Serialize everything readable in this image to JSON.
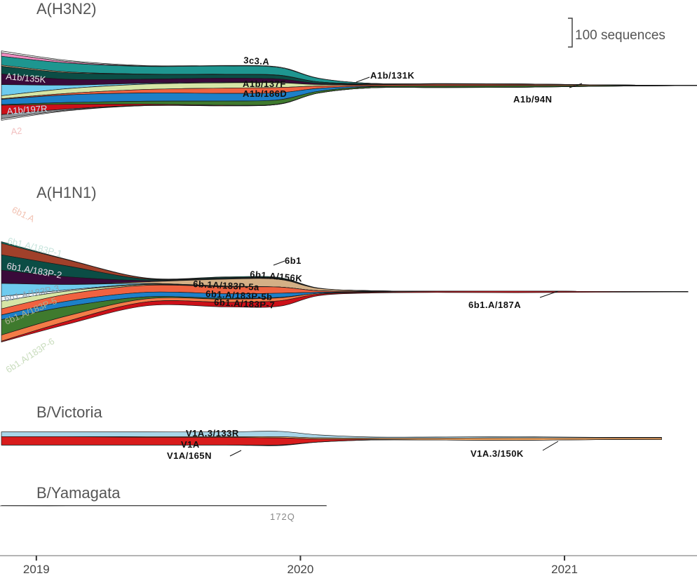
{
  "chart_data": {
    "type": "area",
    "title": "",
    "xlabel": "",
    "ylabel": "",
    "x_axis": {
      "range": [
        2018.95,
        2021.6
      ],
      "ticks": [
        2019,
        2020,
        2021
      ],
      "tick_labels": [
        "2019",
        "2020",
        "2021"
      ]
    },
    "scale_bar": {
      "value": 100,
      "label": "100 sequences"
    },
    "time_points": [
      2018.95,
      2019.2,
      2019.5,
      2019.8,
      2020.0,
      2020.15,
      2020.35,
      2020.6,
      2020.9,
      2021.2,
      2021.5
    ],
    "panels": [
      {
        "name": "A(H3N2)",
        "series": [
          {
            "name": "other-white",
            "color": "#ffffff",
            "values": [
              6,
              4,
              2,
              2,
              2,
              1,
              0,
              0,
              0,
              0,
              0
            ]
          },
          {
            "name": "pink",
            "color": "#f08cc0",
            "values": [
              12,
              5,
              1,
              0,
              0,
              0,
              0,
              0,
              0,
              0,
              0
            ]
          },
          {
            "name": "3c3.A",
            "color": "#1e9690",
            "values": [
              30,
              30,
              26,
              28,
              26,
              12,
              2,
              1,
              1,
              0,
              0
            ]
          },
          {
            "name": "tan",
            "color": "#d8b486",
            "values": [
              4,
              3,
              1,
              1,
              1,
              0,
              0,
              0,
              0,
              0,
              0
            ]
          },
          {
            "name": "A1b/131K",
            "color": "#0b4d45",
            "values": [
              26,
              22,
              16,
              12,
              12,
              5,
              1,
              1,
              1,
              0,
              0
            ]
          },
          {
            "name": "A1b/135K",
            "color": "#3a0a3a",
            "values": [
              36,
              20,
              14,
              14,
              12,
              4,
              1,
              0,
              0,
              0,
              0
            ]
          },
          {
            "name": "lightblue",
            "color": "#6ecbef",
            "values": [
              38,
              12,
              3,
              2,
              1,
              0,
              0,
              0,
              0,
              0,
              0
            ]
          },
          {
            "name": "A1b/137F",
            "color": "#d6e6a6",
            "values": [
              10,
              16,
              18,
              18,
              16,
              5,
              1,
              0,
              0,
              0,
              0
            ]
          },
          {
            "name": "A1b/186D",
            "color": "#f06240",
            "values": [
              2,
              5,
              12,
              18,
              18,
              8,
              4,
              5,
              4,
              2,
              0
            ]
          },
          {
            "name": "A1b/197R",
            "color": "#1d80c8",
            "values": [
              18,
              26,
              28,
              26,
              24,
              10,
              2,
              1,
              1,
              0,
              0
            ]
          },
          {
            "name": "A1b/94N",
            "color": "#3f7a2e",
            "values": [
              2,
              6,
              10,
              14,
              14,
              6,
              4,
              5,
              5,
              3,
              1
            ]
          },
          {
            "name": "A2",
            "color": "#cc1018",
            "values": [
              32,
              16,
              4,
              2,
              1,
              0,
              0,
              0,
              0,
              0,
              0
            ]
          },
          {
            "name": "grey",
            "color": "#8f9296",
            "values": [
              14,
              4,
              1,
              0,
              0,
              0,
              0,
              0,
              0,
              0,
              0
            ]
          },
          {
            "name": "other-white-2",
            "color": "#ffffff",
            "values": [
              5,
              2,
              0,
              0,
              0,
              0,
              0,
              0,
              0,
              0,
              0
            ]
          }
        ],
        "labels_inside": [
          {
            "text": "A1b/135K",
            "color": "#e8e8e8"
          },
          {
            "text": "A1b/197R",
            "color": "#c8e6f6"
          },
          {
            "text": "A2",
            "color": "#f2c0c0"
          }
        ],
        "labels_bold": [
          "3c3.A",
          "A1b/137F",
          "A1b/186D",
          "A1b/131K",
          "A1b/94N"
        ]
      },
      {
        "name": "A(H1N1)",
        "series": [
          {
            "name": "6b1",
            "color": "#14806e",
            "values": [
              4,
              1,
              1,
              2,
              2,
              1,
              0,
              0,
              0,
              0,
              0
            ]
          },
          {
            "name": "6b1.A",
            "color": "#a0402a",
            "values": [
              30,
              16,
              2,
              1,
              1,
              0,
              0,
              0,
              0,
              0,
              0
            ]
          },
          {
            "name": "6b1.A/183P-1",
            "color": "#0b4d45",
            "values": [
              40,
              28,
              4,
              2,
              1,
              0,
              0,
              0,
              0,
              0,
              0
            ]
          },
          {
            "name": "6b1.A/183P-2",
            "color": "#3a0a3a",
            "values": [
              34,
              20,
              3,
              1,
              1,
              0,
              0,
              0,
              0,
              0,
              0
            ]
          },
          {
            "name": "6b1.A/156K",
            "color": "#d4b086",
            "values": [
              0,
              0,
              4,
              18,
              20,
              6,
              1,
              0,
              0,
              0,
              0
            ]
          },
          {
            "name": "6b1.A/183P-3",
            "color": "#6ecbef",
            "values": [
              34,
              14,
              2,
              1,
              0,
              0,
              0,
              0,
              0,
              0,
              0
            ]
          },
          {
            "name": "white",
            "color": "#f4f8fc",
            "values": [
              12,
              3,
              1,
              0,
              0,
              0,
              0,
              0,
              0,
              0,
              0
            ]
          },
          {
            "name": "6b1.A/183P-5",
            "color": "#d6e6a6",
            "values": [
              20,
              8,
              2,
              1,
              0,
              0,
              0,
              0,
              0,
              0,
              0
            ]
          },
          {
            "name": "6b.1A/183P-5a",
            "color": "#f06240",
            "values": [
              16,
              18,
              18,
              18,
              16,
              4,
              1,
              0,
              0,
              0,
              0
            ]
          },
          {
            "name": "6b1.A/183P-5b",
            "color": "#1d80c8",
            "values": [
              12,
              14,
              12,
              12,
              11,
              3,
              1,
              0,
              0,
              0,
              0
            ]
          },
          {
            "name": "6b1.A/183P-6",
            "color": "#3f7a2e",
            "values": [
              40,
              24,
              5,
              2,
              1,
              0,
              0,
              0,
              0,
              0,
              0
            ]
          },
          {
            "name": "6b1.A/183P-7",
            "color": "#f47c48",
            "values": [
              16,
              14,
              8,
              8,
              8,
              2,
              1,
              0,
              0,
              0,
              0
            ]
          },
          {
            "name": "6b1.A/187A",
            "color": "#cc1018",
            "values": [
              2,
              8,
              10,
              12,
              14,
              4,
              2,
              3,
              4,
              2,
              1
            ]
          }
        ],
        "labels_inside": [
          {
            "text": "6b1.A",
            "color": "#f2c2b2"
          },
          {
            "text": "6b1.A/183P-1",
            "color": "#c6e4dc"
          },
          {
            "text": "6b1.A/183P-2",
            "color": "#e8dce8"
          },
          {
            "text": "6b1.A/183P-3",
            "color": "#8aa0b0"
          },
          {
            "text": "6b1.A/183P-5",
            "color": "#a8b090"
          },
          {
            "text": "6b1.A/183P-6",
            "color": "#c8dcbc"
          }
        ],
        "labels_bold": [
          "6b1",
          "6b1.A/156K",
          "6b.1A/183P-5a",
          "6b1.A/183P-5b",
          "6b1.A/183P-7",
          "6b1.A/187A"
        ]
      },
      {
        "name": "B/Victoria",
        "series": [
          {
            "name": "V1A.3/133R",
            "color": "#a9d6e8",
            "values": [
              8,
              8,
              8,
              8,
              9,
              5,
              2,
              2,
              2,
              1,
              0
            ]
          },
          {
            "name": "V1A.3/150K",
            "color": "#f5a964",
            "values": [
              0,
              0,
              1,
              1,
              2,
              2,
              2,
              3,
              4,
              3,
              2
            ]
          },
          {
            "name": "V1A",
            "color": "#d81c1c",
            "values": [
              14,
              14,
              13,
              13,
              12,
              5,
              1,
              0,
              0,
              0,
              0
            ]
          },
          {
            "name": "V1A/165N",
            "color": "#2a3a6a",
            "values": [
              0,
              0,
              0,
              0,
              1,
              0,
              0,
              0,
              0,
              0,
              0
            ]
          }
        ],
        "labels_bold": [
          "V1A.3/133R",
          "V1A",
          "V1A/165N",
          "V1A.3/150K"
        ]
      },
      {
        "name": "B/Yamagata",
        "series": [
          {
            "name": "172Q",
            "color": "#a04030",
            "values": [
              1,
              1,
              0.5,
              0.5,
              0.5,
              0.5,
              0,
              0,
              0,
              0,
              0
            ]
          }
        ],
        "labels_small": [
          "172Q"
        ]
      }
    ]
  }
}
